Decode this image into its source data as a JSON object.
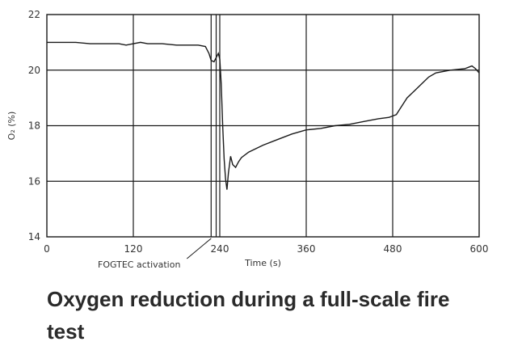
{
  "chart_data": {
    "type": "line",
    "xlabel": "Time (s)",
    "ylabel": "O₂ (%)",
    "xlim": [
      0,
      600
    ],
    "ylim": [
      14,
      22
    ],
    "x_ticks": [
      "0",
      "120",
      "240",
      "360",
      "480",
      "600"
    ],
    "y_ticks": [
      "14",
      "16",
      "18",
      "20",
      "22"
    ],
    "grid": true,
    "series": [
      {
        "x": [
          0,
          20,
          40,
          60,
          80,
          100,
          110,
          120,
          130,
          140,
          160,
          180,
          200,
          210,
          220,
          225,
          228,
          232,
          235,
          238,
          240,
          242,
          244,
          246,
          248,
          250,
          252,
          255,
          258,
          262,
          266,
          270,
          280,
          300,
          320,
          340,
          360,
          380,
          400,
          420,
          440,
          460,
          475,
          480,
          485,
          490,
          500,
          510,
          520,
          530,
          540,
          560,
          580,
          585,
          590,
          595,
          600
        ],
        "y": [
          21.0,
          21.0,
          21.0,
          20.95,
          20.95,
          20.95,
          20.9,
          20.95,
          21.0,
          20.95,
          20.95,
          20.9,
          20.9,
          20.9,
          20.85,
          20.6,
          20.35,
          20.3,
          20.45,
          20.6,
          20.4,
          19.5,
          18.0,
          16.8,
          16.1,
          15.7,
          16.3,
          16.9,
          16.6,
          16.5,
          16.7,
          16.85,
          17.05,
          17.3,
          17.5,
          17.7,
          17.85,
          17.9,
          18.0,
          18.05,
          18.15,
          18.25,
          18.3,
          18.35,
          18.4,
          18.6,
          19.0,
          19.25,
          19.5,
          19.75,
          19.9,
          20.0,
          20.05,
          20.1,
          20.15,
          20.05,
          19.9
        ]
      }
    ],
    "annotations": [
      {
        "text": "FOGTEC activation",
        "x": 228
      },
      {
        "x": 235
      }
    ]
  },
  "caption": "Oxygen reduction during a full-scale fire test"
}
